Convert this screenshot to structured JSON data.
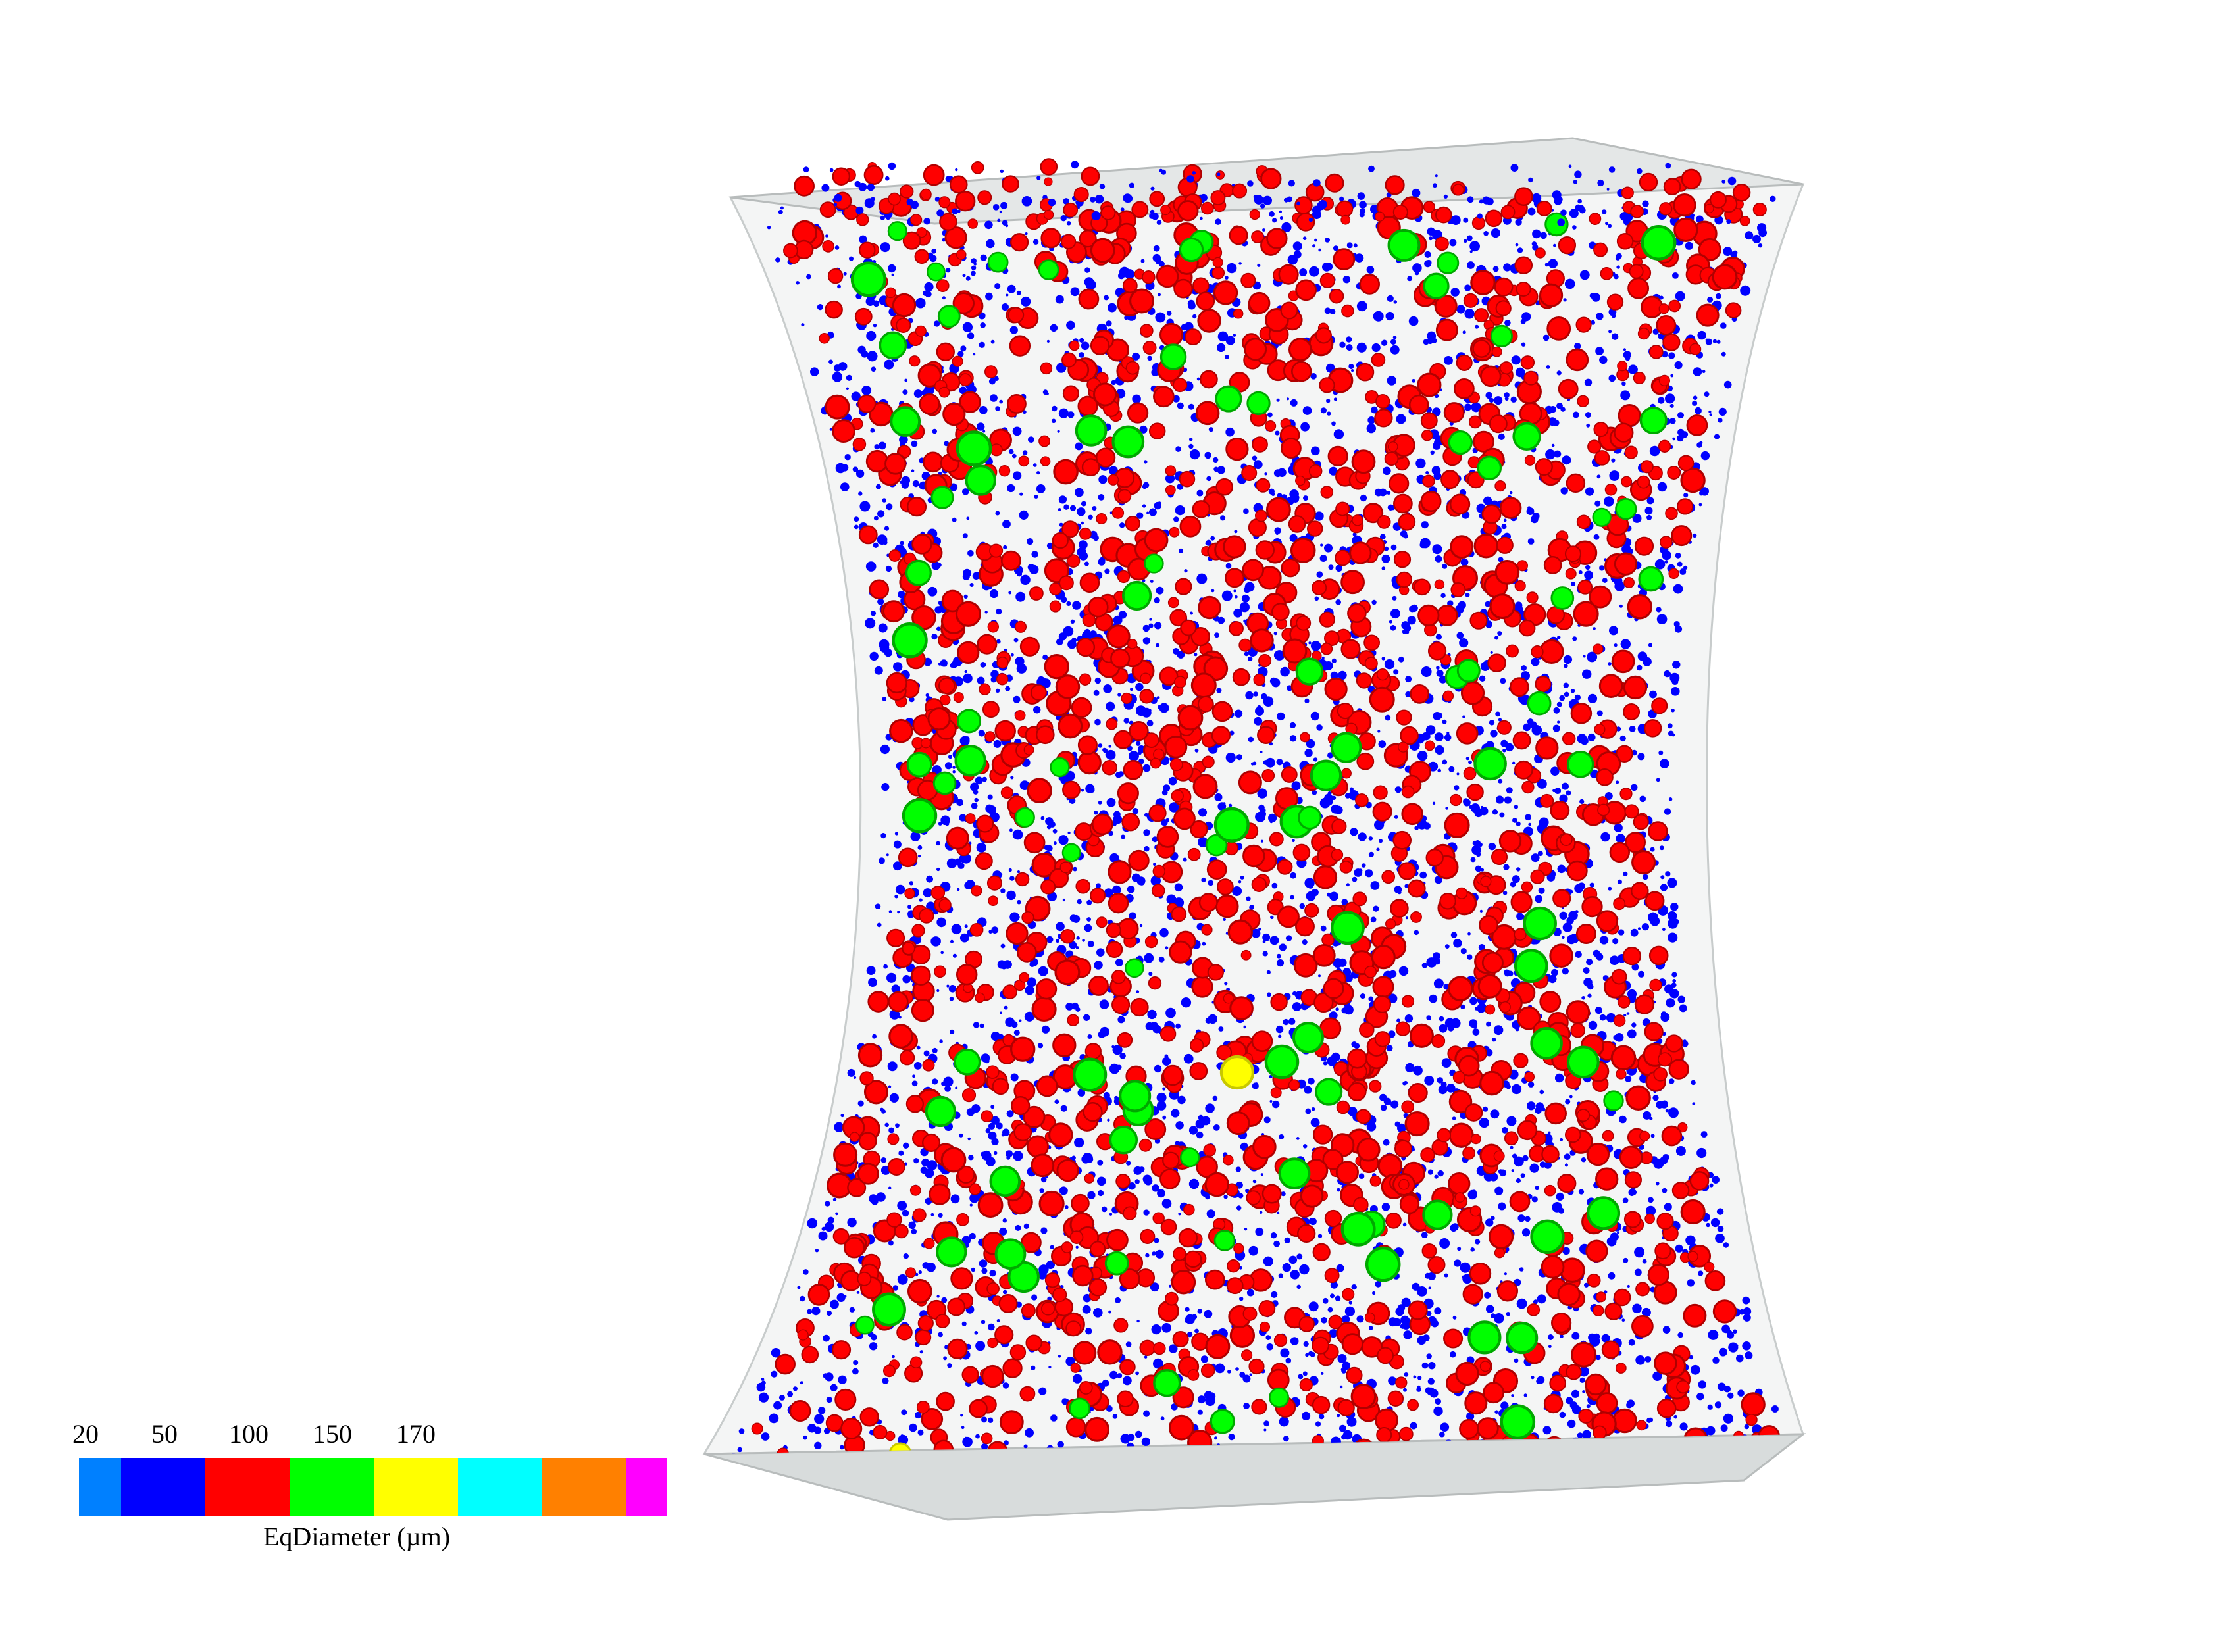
{
  "visualization": {
    "specimen_outline_color": "#c8cccc",
    "specimen_fill_color": "#eef0f0",
    "pore_classes": [
      {
        "name": "small",
        "color": "#0000ff",
        "density": "very-high"
      },
      {
        "name": "medium",
        "color": "#ff0000",
        "density": "high"
      },
      {
        "name": "large",
        "color": "#00ff00",
        "density": "low"
      },
      {
        "name": "very-large",
        "color": "#ffff00",
        "density": "rare"
      }
    ]
  },
  "legend": {
    "title": "EqDiameter (µm)",
    "ticks": [
      "20",
      "50",
      "100",
      "150",
      "170"
    ],
    "colors": [
      "#0080ff",
      "#0000ff",
      "#ff0000",
      "#00ff00",
      "#ffff00",
      "#00ffff",
      "#ff8000",
      "#ff00ff"
    ]
  }
}
